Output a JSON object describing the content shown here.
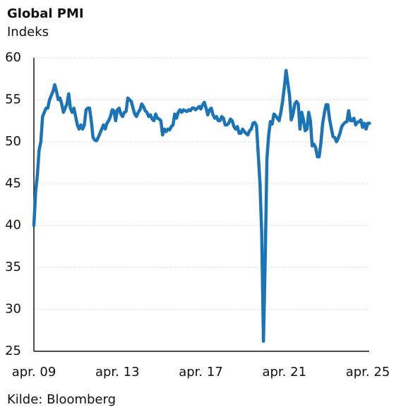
{
  "chart_data": {
    "type": "line",
    "title": "Global PMI",
    "subtitle": "Indeks",
    "source": "Kilde: Bloomberg",
    "categories": [
      "apr. 09",
      null,
      null,
      null,
      null,
      null,
      null,
      null,
      null,
      null,
      null,
      null,
      null,
      null,
      null,
      null,
      null,
      null,
      null,
      null,
      null,
      null,
      null,
      null,
      null,
      null,
      null,
      null,
      null,
      null,
      null,
      null,
      null,
      null,
      null,
      null,
      null,
      null,
      null,
      null,
      null,
      null,
      null,
      null,
      null,
      null,
      null,
      null,
      "apr. 13",
      null,
      null,
      null,
      null,
      null,
      null,
      null,
      null,
      null,
      null,
      null,
      null,
      null,
      null,
      null,
      null,
      null,
      null,
      null,
      null,
      null,
      null,
      null,
      null,
      null,
      null,
      null,
      null,
      null,
      null,
      null,
      null,
      null,
      null,
      null,
      null,
      null,
      null,
      null,
      null,
      null,
      null,
      null,
      null,
      null,
      null,
      null,
      "apr. 17",
      null,
      null,
      null,
      null,
      null,
      null,
      null,
      null,
      null,
      null,
      null,
      null,
      null,
      null,
      null,
      null,
      null,
      null,
      null,
      null,
      null,
      null,
      null,
      null,
      null,
      null,
      null,
      null,
      null,
      null,
      null,
      null,
      null,
      null,
      null,
      null,
      null,
      null,
      null,
      null,
      null,
      null,
      null,
      null,
      null,
      null,
      null,
      "apr. 21",
      null,
      null,
      null,
      null,
      null,
      null,
      null,
      null,
      null,
      null,
      null,
      null,
      null,
      null,
      null,
      null,
      null,
      null,
      null,
      null,
      null,
      null,
      null,
      null,
      null,
      null,
      null,
      null,
      null,
      null,
      null,
      null,
      null,
      null,
      null,
      null,
      null,
      null,
      null,
      null,
      null,
      null,
      null,
      null,
      null,
      null,
      null,
      "apr. 25",
      null
    ],
    "series": [
      {
        "color": "#1a74b6",
        "values": [
          40,
          44,
          46,
          49,
          50,
          53,
          53.5,
          54,
          54,
          55,
          55.5,
          56,
          56.8,
          56,
          55,
          55.2,
          54.5,
          53.5,
          54,
          54.5,
          55.7,
          54,
          53.5,
          54,
          53,
          52,
          51.5,
          52,
          51.5,
          52,
          53.8,
          54,
          54,
          52.5,
          50.5,
          50.2,
          50.1,
          50.5,
          51,
          51.5,
          52,
          51.5,
          52.2,
          52.5,
          53,
          53.8,
          53.7,
          52.5,
          53.8,
          54,
          53.3,
          53,
          53.5,
          53.6,
          55.2,
          55,
          54.8,
          54,
          53.3,
          53,
          53.5,
          53.8,
          54.5,
          54.2,
          53.7,
          53.5,
          53,
          53.2,
          52.7,
          52.5,
          53.3,
          52.8,
          52.7,
          52.5,
          50.8,
          51.5,
          51.2,
          51.5,
          51.4,
          51.8,
          52,
          53.3,
          52.8,
          53.5,
          53.8,
          53.5,
          53.8,
          53.7,
          53.6,
          53.8,
          53.7,
          54,
          54,
          53.8,
          54,
          54.2,
          53.9,
          54.4,
          54.7,
          54,
          53.2,
          53.8,
          54,
          53.2,
          52.8,
          53,
          52.5,
          52.5,
          53,
          52.8,
          52,
          52,
          52.2,
          52.7,
          52.5,
          51.8,
          51.5,
          51.8,
          51,
          51,
          51.5,
          51.2,
          51,
          50.8,
          51.3,
          51.5,
          52.2,
          52.3,
          51.9,
          48.5,
          45,
          39,
          26.2,
          36,
          48,
          50.8,
          52.4,
          52.1,
          53.3,
          53.1,
          52.8,
          52.5,
          53.5,
          54.8,
          56.5,
          58.5,
          57,
          55.5,
          52.6,
          53.3,
          54.5,
          54.8,
          54.5,
          51.5,
          53.5,
          52.6,
          51.3,
          51.5,
          53.5,
          52.5,
          49.5,
          49.7,
          49.3,
          48.2,
          48.2,
          49.8,
          52.1,
          53.4,
          54.4,
          54.4,
          52.7,
          51.6,
          50.6,
          50.5,
          50,
          50.4,
          51,
          51.8,
          52.1,
          52.3,
          52.4,
          53.7,
          52.5,
          52.5,
          52.8,
          52,
          52.3,
          52.4,
          52.6,
          51.7,
          52.2,
          51.5,
          52.2,
          52.2
        ]
      }
    ],
    "ylim": [
      25,
      60
    ],
    "yticks": [
      25,
      30,
      35,
      40,
      45,
      50,
      55,
      60
    ],
    "grid": true
  }
}
